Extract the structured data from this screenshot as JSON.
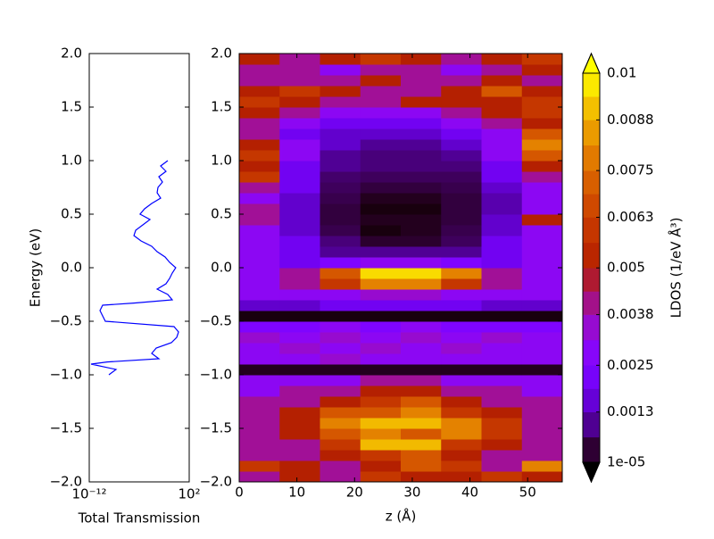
{
  "chart_data": [
    {
      "type": "line",
      "xlabel": "Total Transmission",
      "ylabel": "Energy (eV)",
      "xscale": "log",
      "color": "#0000ff",
      "xlim": [
        1e-12,
        100
      ],
      "xticks": [
        {
          "value": 1e-12,
          "label": "10⁻¹²"
        },
        {
          "value": 100,
          "label": "10²"
        }
      ],
      "ylim": [
        -2,
        2
      ],
      "yticks": [
        {
          "value": -2,
          "label": "−2.0"
        },
        {
          "value": -1.5,
          "label": "−1.5"
        },
        {
          "value": -1,
          "label": "−1.0"
        },
        {
          "value": -0.5,
          "label": "−0.5"
        },
        {
          "value": 0,
          "label": "0.0"
        },
        {
          "value": 0.5,
          "label": "0.5"
        },
        {
          "value": 1,
          "label": "1.0"
        },
        {
          "value": 1.5,
          "label": "1.5"
        },
        {
          "value": 2,
          "label": "2.0"
        }
      ],
      "y": [
        1.0,
        0.95,
        0.9,
        0.85,
        0.8,
        0.75,
        0.7,
        0.65,
        0.6,
        0.55,
        0.5,
        0.45,
        0.4,
        0.35,
        0.3,
        0.25,
        0.2,
        0.15,
        0.1,
        0.05,
        0.0,
        -0.05,
        -0.1,
        -0.15,
        -0.2,
        -0.25,
        -0.3,
        -0.33,
        -0.35,
        -0.4,
        -0.45,
        -0.5,
        -0.55,
        -0.6,
        -0.65,
        -0.7,
        -0.75,
        -0.8,
        -0.85,
        -0.88,
        -0.9,
        -0.95,
        -1.0
      ],
      "values": [
        0.1,
        0.01,
        0.056,
        0.0056,
        0.018,
        0.0042,
        0.0032,
        0.01,
        0.00056,
        5.6e-05,
        1.3e-05,
        0.00032,
        3.2e-05,
        3.2e-06,
        1.8e-06,
        1.8e-05,
        0.00056,
        0.0032,
        0.042,
        0.18,
        1.3,
        0.42,
        0.18,
        0.056,
        0.0032,
        0.1,
        0.42,
        1.8e-06,
        7.5e-11,
        3.2e-11,
        7.5e-11,
        1.8e-10,
        0.75,
        3.2,
        1.8,
        0.32,
        0.0024,
        0.00056,
        0.0056,
        3.2e-10,
        1.8e-12,
        5.6e-09,
        5.6e-10
      ]
    },
    {
      "type": "heatmap",
      "xlabel": "z (Å)",
      "colormap": "gnuplot",
      "xlim": [
        0,
        56
      ],
      "xticks": [
        0,
        10,
        20,
        30,
        40,
        50
      ],
      "ylim": [
        -2,
        2
      ],
      "yticks": [
        {
          "value": -2,
          "label": "−2.0"
        },
        {
          "value": -1.5,
          "label": "−1.5"
        },
        {
          "value": -1,
          "label": "−1.0"
        },
        {
          "value": -0.5,
          "label": "−0.5"
        },
        {
          "value": 0,
          "label": "0.0"
        },
        {
          "value": 0.5,
          "label": "0.5"
        },
        {
          "value": 1,
          "label": "1.0"
        },
        {
          "value": 1.5,
          "label": "1.5"
        },
        {
          "value": 2,
          "label": "2.0"
        }
      ],
      "x": [
        3.5,
        10.5,
        17.5,
        24.5,
        31.5,
        38.5,
        45.5,
        52.5
      ],
      "y": [
        -1.95,
        -1.85,
        -1.75,
        -1.65,
        -1.55,
        -1.45,
        -1.35,
        -1.25,
        -1.15,
        -1.05,
        -0.95,
        -0.85,
        -0.75,
        -0.65,
        -0.55,
        -0.45,
        -0.35,
        -0.25,
        -0.15,
        -0.05,
        0.05,
        0.15,
        0.25,
        0.35,
        0.45,
        0.55,
        0.65,
        0.75,
        0.85,
        0.95,
        1.05,
        1.15,
        1.25,
        1.35,
        1.45,
        1.55,
        1.65,
        1.75,
        1.85,
        1.95
      ],
      "z": [
        [
          0.004,
          0.005,
          0.004,
          0.006,
          0.005,
          0.005,
          0.006,
          0.005
        ],
        [
          0.006,
          0.005,
          0.004,
          0.005,
          0.007,
          0.006,
          0.004,
          0.008
        ],
        [
          0.004,
          0.004,
          0.005,
          0.006,
          0.007,
          0.005,
          0.004,
          0.004
        ],
        [
          0.004,
          0.004,
          0.006,
          0.009,
          0.009,
          0.006,
          0.005,
          0.004
        ],
        [
          0.004,
          0.005,
          0.007,
          0.008,
          0.007,
          0.008,
          0.006,
          0.004
        ],
        [
          0.004,
          0.005,
          0.008,
          0.009,
          0.009,
          0.008,
          0.006,
          0.004
        ],
        [
          0.004,
          0.005,
          0.007,
          0.007,
          0.008,
          0.006,
          0.005,
          0.004
        ],
        [
          0.004,
          0.004,
          0.005,
          0.006,
          0.007,
          0.005,
          0.004,
          0.004
        ],
        [
          0.003,
          0.004,
          0.004,
          0.005,
          0.005,
          0.004,
          0.004,
          0.003
        ],
        [
          0.003,
          0.003,
          0.003,
          0.004,
          0.004,
          0.003,
          0.003,
          0.003
        ],
        [
          0.0002,
          0.0002,
          0.0002,
          0.0002,
          0.0002,
          0.0002,
          0.0002,
          0.0002
        ],
        [
          0.003,
          0.003,
          0.0035,
          0.003,
          0.003,
          0.003,
          0.003,
          0.003
        ],
        [
          0.003,
          0.0035,
          0.003,
          0.0035,
          0.003,
          0.0035,
          0.003,
          0.003
        ],
        [
          0.0035,
          0.003,
          0.0035,
          0.003,
          0.0035,
          0.003,
          0.0035,
          0.003
        ],
        [
          0.0025,
          0.0025,
          0.003,
          0.0025,
          0.003,
          0.0025,
          0.0025,
          0.0025
        ],
        [
          0.0001,
          0.0001,
          0.0001,
          0.0001,
          0.0001,
          0.0001,
          0.0001,
          0.0001
        ],
        [
          0.0015,
          0.0015,
          0.002,
          0.002,
          0.002,
          0.002,
          0.0015,
          0.0015
        ],
        [
          0.003,
          0.003,
          0.003,
          0.0035,
          0.0035,
          0.003,
          0.003,
          0.003
        ],
        [
          0.003,
          0.004,
          0.006,
          0.008,
          0.008,
          0.006,
          0.004,
          0.003
        ],
        [
          0.003,
          0.004,
          0.007,
          0.0095,
          0.0095,
          0.008,
          0.004,
          0.003
        ],
        [
          0.003,
          0.002,
          0.0025,
          0.003,
          0.003,
          0.0025,
          0.002,
          0.003
        ],
        [
          0.003,
          0.002,
          0.001,
          0.001,
          0.001,
          0.001,
          0.002,
          0.003
        ],
        [
          0.003,
          0.002,
          0.0008,
          0.0003,
          0.0003,
          0.0006,
          0.002,
          0.003
        ],
        [
          0.003,
          0.0015,
          0.0005,
          0.0001,
          0.0002,
          0.0005,
          0.0015,
          0.003
        ],
        [
          0.004,
          0.0015,
          0.0004,
          0.0002,
          0.0002,
          0.0004,
          0.0015,
          0.005
        ],
        [
          0.004,
          0.0015,
          0.0004,
          0.0001,
          0.0001,
          0.0004,
          0.0012,
          0.003
        ],
        [
          0.003,
          0.0015,
          0.0005,
          0.0002,
          0.0002,
          0.0004,
          0.0012,
          0.003
        ],
        [
          0.004,
          0.002,
          0.0006,
          0.0004,
          0.0004,
          0.0005,
          0.0015,
          0.003
        ],
        [
          0.006,
          0.002,
          0.0007,
          0.0006,
          0.0006,
          0.0006,
          0.002,
          0.004
        ],
        [
          0.005,
          0.002,
          0.001,
          0.0008,
          0.0008,
          0.0008,
          0.002,
          0.005
        ],
        [
          0.006,
          0.003,
          0.001,
          0.0008,
          0.0008,
          0.001,
          0.003,
          0.007
        ],
        [
          0.005,
          0.003,
          0.0015,
          0.001,
          0.001,
          0.0015,
          0.003,
          0.008
        ],
        [
          0.004,
          0.002,
          0.0015,
          0.0015,
          0.0015,
          0.002,
          0.003,
          0.007
        ],
        [
          0.004,
          0.003,
          0.002,
          0.002,
          0.002,
          0.003,
          0.004,
          0.005
        ],
        [
          0.005,
          0.004,
          0.003,
          0.003,
          0.003,
          0.004,
          0.005,
          0.006
        ],
        [
          0.006,
          0.005,
          0.004,
          0.004,
          0.005,
          0.005,
          0.005,
          0.006
        ],
        [
          0.005,
          0.006,
          0.005,
          0.004,
          0.004,
          0.005,
          0.007,
          0.005
        ],
        [
          0.004,
          0.004,
          0.004,
          0.005,
          0.004,
          0.004,
          0.005,
          0.004
        ],
        [
          0.004,
          0.004,
          0.003,
          0.004,
          0.004,
          0.003,
          0.004,
          0.005
        ],
        [
          0.005,
          0.004,
          0.005,
          0.006,
          0.005,
          0.004,
          0.005,
          0.006
        ]
      ],
      "colorbar": {
        "label": "LDOS (1/eV Å³)",
        "ticks": [
          {
            "value": 1e-05,
            "label": "1e-05"
          },
          0.0013,
          0.0025,
          0.0038,
          0.005,
          0.0063,
          0.0075,
          0.0088,
          0.01
        ]
      }
    }
  ]
}
